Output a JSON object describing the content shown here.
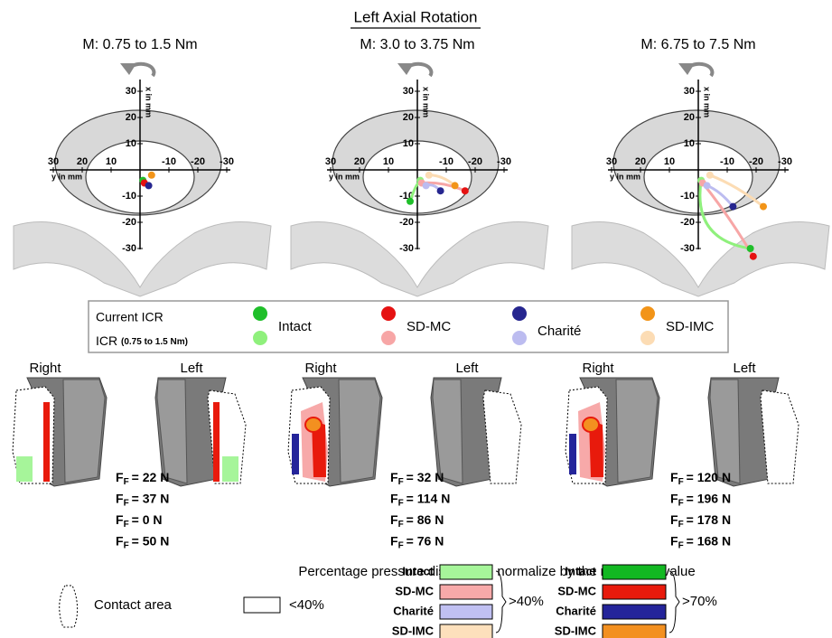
{
  "title": "Left Axial Rotation",
  "axes": {
    "x_label": "y in mm",
    "y_label": "x in mm",
    "xticks": [
      30,
      20,
      10,
      -10,
      -20,
      -30
    ],
    "yticks": [
      30,
      20,
      10,
      -10,
      -20,
      -30
    ]
  },
  "series": [
    {
      "name": "Intact",
      "color": "#1fbf2a",
      "light": "#8ff07c",
      "force_color": "#2a9e2a",
      "pressure_light": "#a6f59a",
      "pressure_dark": "#12b822"
    },
    {
      "name": "SD-MC",
      "color": "#e51212",
      "light": "#f7a6a6",
      "force_color": "#cc1f1f",
      "pressure_light": "#f7a9a9",
      "pressure_dark": "#e81a0c"
    },
    {
      "name": "Charité",
      "color": "#26268f",
      "light": "#bcbcf0",
      "force_color": "#2e2e8c",
      "pressure_light": "#c0c0f2",
      "pressure_dark": "#24249a"
    },
    {
      "name": "SD-IMC",
      "color": "#f29418",
      "light": "#fcdcb4",
      "force_color": "#c9853a",
      "pressure_light": "#fde0bc",
      "pressure_dark": "#f39020"
    }
  ],
  "legend": {
    "current": "Current ICR",
    "initial": "ICR",
    "initial_range": "(0.75 to 1.5 Nm)"
  },
  "force_symbol": "F",
  "force_subscript": "F",
  "panels": [
    {
      "moment": "M: 0.75 to 1.5 Nm",
      "right": "Right",
      "left": "Left",
      "forces": [
        "= 22 N",
        "= 37 N",
        "= 0 N",
        "= 50 N"
      ],
      "icr": [
        {
          "current": {
            "y": -1,
            "x": -4
          }
        },
        {
          "current": {
            "y": -1.5,
            "x": -5
          }
        },
        {
          "current": {
            "y": -3,
            "x": -6
          }
        },
        {
          "current": {
            "y": -4,
            "x": -2
          }
        }
      ]
    },
    {
      "moment": "M: 3.0 to 3.75 Nm",
      "right": "Right",
      "left": "Left",
      "forces": [
        "= 32 N",
        "= 114 N",
        "= 86 N",
        "= 76 N"
      ],
      "icr": [
        {
          "initial": {
            "y": -1,
            "x": -4
          },
          "current": {
            "y": 2.5,
            "x": -12
          }
        },
        {
          "initial": {
            "y": -1.5,
            "x": -5
          },
          "current": {
            "y": -16.5,
            "x": -8
          }
        },
        {
          "initial": {
            "y": -3,
            "x": -6
          },
          "current": {
            "y": -8,
            "x": -8
          }
        },
        {
          "initial": {
            "y": -4,
            "x": -2
          },
          "current": {
            "y": -13,
            "x": -6
          }
        }
      ]
    },
    {
      "moment": "M: 6.75 to 7.5 Nm",
      "right": "Right",
      "left": "Left",
      "forces": [
        "= 120 N",
        "= 196 N",
        "= 178 N",
        "= 168 N"
      ],
      "icr": [
        {
          "initial": {
            "y": -1,
            "x": -4
          },
          "current": {
            "y": -18,
            "x": -30
          }
        },
        {
          "initial": {
            "y": -1.5,
            "x": -5
          },
          "current": {
            "y": -19,
            "x": -33
          }
        },
        {
          "initial": {
            "y": -3,
            "x": -6
          },
          "current": {
            "y": -12,
            "x": -14
          }
        },
        {
          "initial": {
            "y": -4,
            "x": -2
          },
          "current": {
            "y": -22.5,
            "x": -14
          }
        }
      ]
    }
  ],
  "pressure_legend": {
    "title": "Percentage pressure distribution normalize by the maximum value",
    "contact_area": "Contact area",
    "low": "<40%",
    "mid": ">40%",
    "high": ">70%"
  }
}
